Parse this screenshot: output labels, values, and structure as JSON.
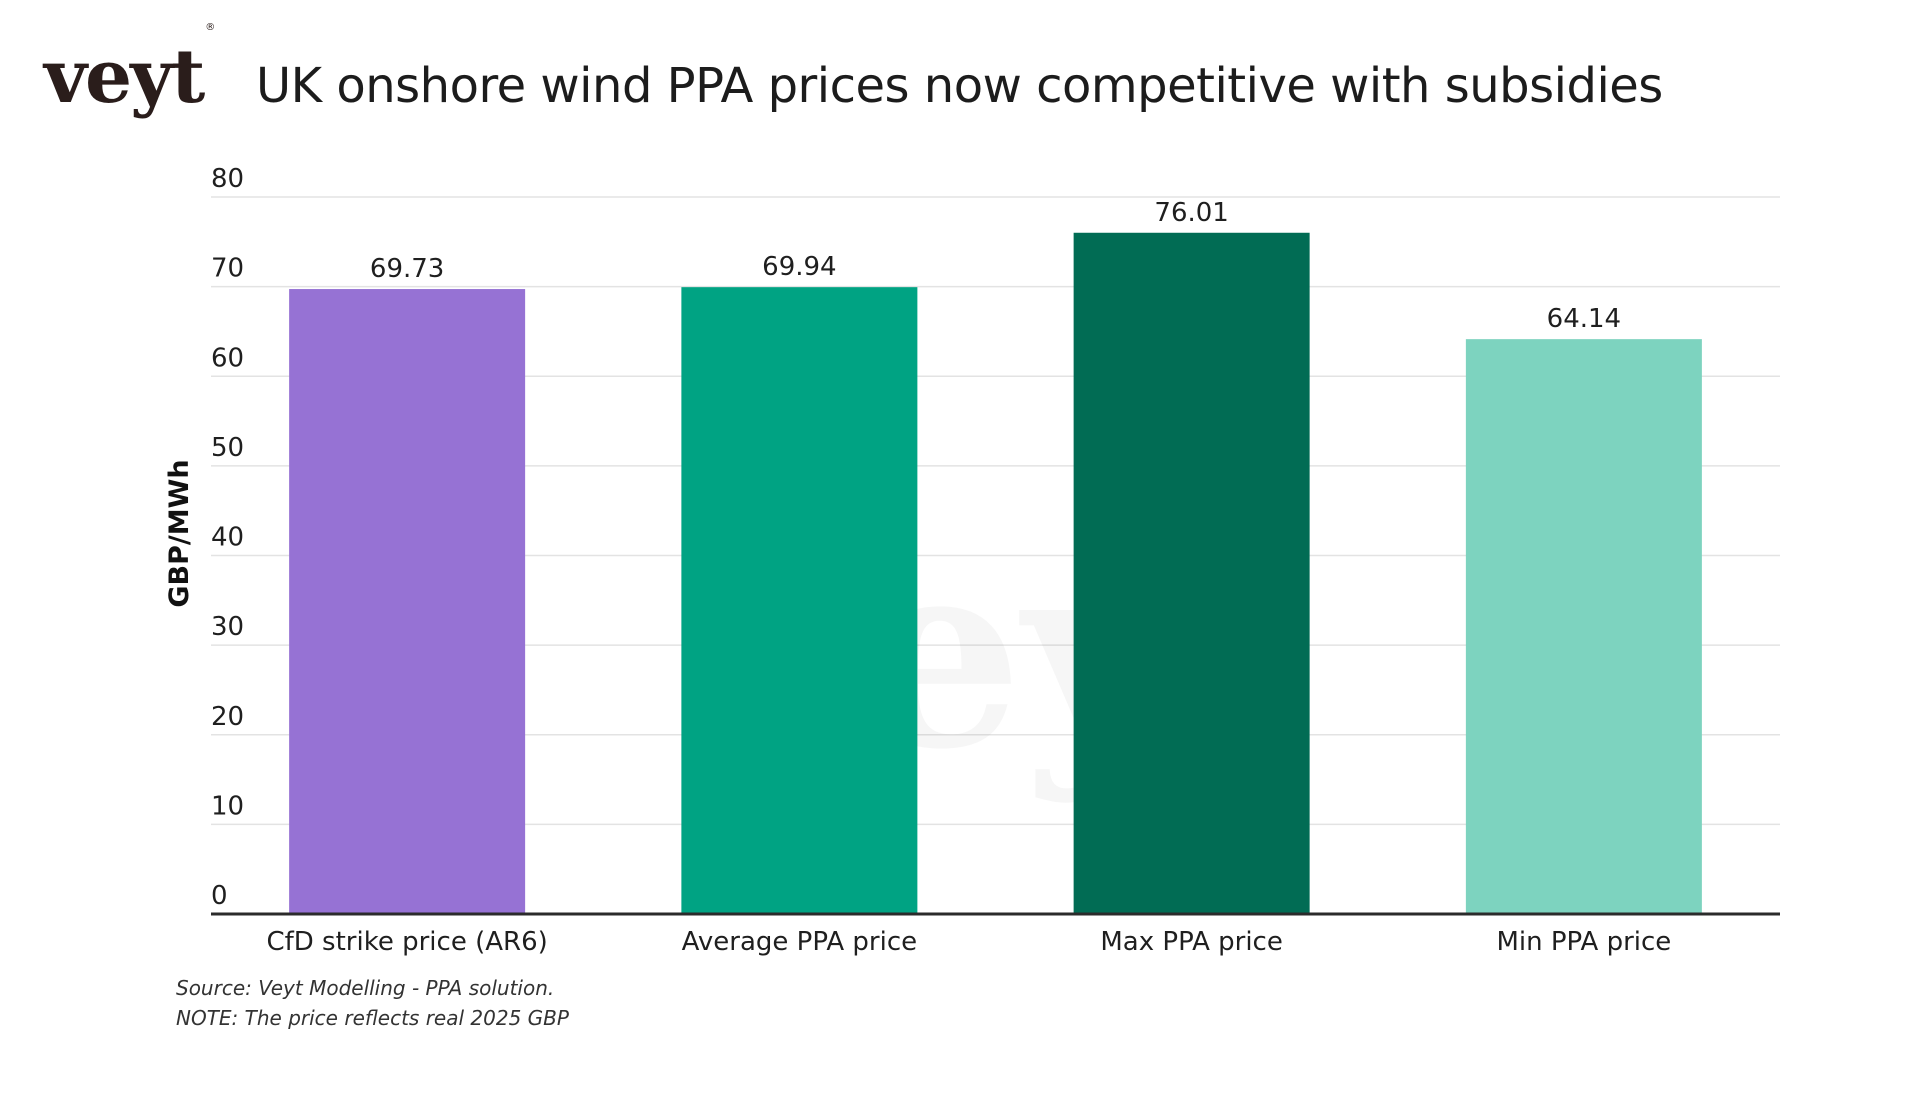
{
  "brand": {
    "logo_text": "veyt",
    "logo_mark": "®",
    "watermark_text": "veyt"
  },
  "header": {
    "title": "UK onshore wind PPA prices now competitive with subsidies"
  },
  "chart_data": {
    "type": "bar",
    "title": "UK onshore wind PPA prices now competitive with subsidies",
    "xlabel": "",
    "ylabel": "GBP/MWh",
    "categories": [
      "CfD strike price (AR6)",
      "Average PPA price",
      "Max PPA price",
      "Min PPA price"
    ],
    "values": [
      69.73,
      69.94,
      76.01,
      64.14
    ],
    "value_labels": [
      "69.73",
      "69.94",
      "76.01",
      "64.14"
    ],
    "colors": [
      "#9672d4",
      "#00a383",
      "#016c54",
      "#7dd3bf"
    ],
    "ylim": [
      0,
      80
    ],
    "yticks": [
      0,
      10,
      20,
      30,
      40,
      50,
      60,
      70,
      80
    ],
    "grid": true,
    "legend": "none"
  },
  "footer": {
    "source": "Source: Veyt Modelling - PPA solution.",
    "note": "NOTE: The price reflects real 2025 GBP"
  }
}
